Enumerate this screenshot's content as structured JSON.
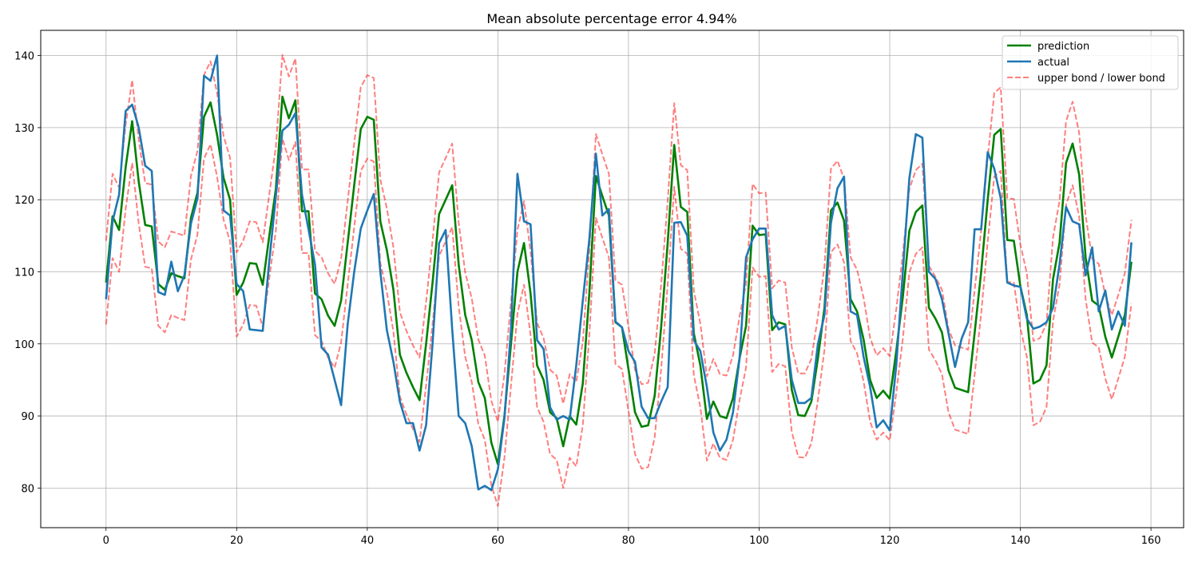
{
  "chart_data": {
    "type": "line",
    "title": "Mean absolute percentage error 4.94%",
    "xlabel": "",
    "ylabel": "",
    "xlim": [
      -10,
      165
    ],
    "ylim": [
      74.5,
      143.5
    ],
    "xticks": [
      0,
      20,
      40,
      60,
      80,
      100,
      120,
      140,
      160
    ],
    "yticks": [
      80,
      90,
      100,
      110,
      120,
      130,
      140
    ],
    "grid": true,
    "legend_position": "top-right",
    "series": [
      {
        "name": "prediction",
        "color": "#008000",
        "style": "solid",
        "x": [
          0,
          1,
          2,
          3,
          4,
          5,
          6,
          7,
          8,
          9,
          10,
          11,
          12,
          13,
          14,
          15,
          16,
          17,
          18,
          19,
          20,
          21,
          22,
          23,
          24,
          25,
          26,
          27,
          28,
          29,
          30,
          31,
          32,
          33,
          34,
          35,
          36,
          37,
          38,
          39,
          40,
          41,
          42,
          43,
          44,
          45,
          46,
          47,
          48,
          49,
          50,
          51,
          52,
          53,
          54,
          55,
          56,
          57,
          58,
          59,
          60,
          61,
          62,
          63,
          64,
          65,
          66,
          67,
          68,
          69,
          70,
          71,
          72,
          73,
          74,
          75,
          76,
          77,
          78,
          79,
          80,
          81,
          82,
          83,
          84,
          85,
          86,
          87,
          88,
          89,
          90,
          91,
          92,
          93,
          94,
          95,
          96,
          97,
          98,
          99,
          100,
          101,
          102,
          103,
          104,
          105,
          106,
          107,
          108,
          109,
          110,
          111,
          112,
          113,
          114,
          115,
          116,
          117,
          118,
          119,
          120,
          121,
          122,
          123,
          124,
          125,
          126,
          127,
          128,
          129,
          130,
          131,
          132,
          133,
          134,
          135,
          136,
          137,
          138,
          139,
          140,
          141,
          142,
          143,
          144,
          145,
          146,
          147,
          148,
          149,
          150,
          151,
          152,
          153,
          154,
          155,
          156,
          157
        ],
        "y": [
          108.5,
          117.7,
          115.8,
          124.5,
          130.9,
          122.5,
          116.5,
          116.3,
          108.3,
          107.5,
          109.8,
          109.4,
          109.1,
          117.5,
          121.0,
          131.5,
          133.5,
          129.0,
          123.0,
          120.0,
          106.8,
          108.5,
          111.2,
          111.1,
          108.2,
          115.0,
          121.5,
          134.3,
          131.3,
          133.8,
          118.4,
          118.4,
          107.0,
          106.2,
          103.9,
          102.5,
          106.0,
          114.0,
          122.0,
          129.8,
          131.5,
          131.1,
          117.0,
          113.0,
          107.5,
          98.5,
          96.0,
          94.0,
          92.2,
          100.0,
          108.5,
          118.0,
          120.0,
          122.0,
          111.0,
          104.0,
          100.5,
          94.7,
          92.5,
          86.3,
          83.3,
          90.0,
          100.0,
          110.0,
          114.0,
          107.0,
          97.0,
          95.0,
          90.5,
          89.7,
          85.8,
          90.0,
          88.8,
          94.5,
          107.0,
          123.3,
          120.5,
          117.8,
          103.0,
          102.3,
          96.5,
          90.5,
          88.5,
          88.7,
          92.8,
          102.3,
          114.0,
          127.6,
          119.0,
          118.3,
          101.5,
          97.0,
          89.6,
          92.0,
          90.0,
          89.7,
          92.5,
          98.0,
          102.5,
          116.4,
          115.1,
          115.2,
          101.9,
          103.0,
          102.7,
          93.6,
          90.1,
          90.0,
          92.0,
          98.0,
          105.0,
          118.5,
          119.6,
          117.1,
          106.2,
          104.5,
          100.6,
          95.0,
          92.5,
          93.5,
          92.4,
          99.0,
          106.5,
          115.7,
          118.3,
          119.2,
          105.0,
          103.5,
          101.6,
          96.3,
          93.9,
          93.6,
          93.3,
          101.5,
          110.0,
          120.0,
          129.0,
          129.8,
          114.4,
          114.3,
          108.0,
          104.0,
          94.5,
          95.0,
          97.0,
          109.0,
          114.0,
          125.1,
          127.8,
          123.5,
          112.0,
          106.0,
          105.3,
          101.0,
          98.1,
          101.0,
          104.0,
          111.4
        ]
      },
      {
        "name": "actual",
        "color": "#1f77b4",
        "style": "solid",
        "x": [
          0,
          1,
          2,
          3,
          4,
          5,
          6,
          7,
          8,
          9,
          10,
          11,
          12,
          13,
          14,
          15,
          16,
          17,
          18,
          19,
          20,
          21,
          22,
          23,
          24,
          25,
          26,
          27,
          28,
          29,
          30,
          31,
          32,
          33,
          34,
          35,
          36,
          37,
          38,
          39,
          40,
          41,
          42,
          43,
          44,
          45,
          46,
          47,
          48,
          49,
          50,
          51,
          52,
          53,
          54,
          55,
          56,
          57,
          58,
          59,
          60,
          61,
          62,
          63,
          64,
          65,
          66,
          67,
          68,
          69,
          70,
          71,
          72,
          73,
          74,
          75,
          76,
          77,
          78,
          79,
          80,
          81,
          82,
          83,
          84,
          85,
          86,
          87,
          88,
          89,
          90,
          91,
          92,
          93,
          94,
          95,
          96,
          97,
          98,
          99,
          100,
          101,
          102,
          103,
          104,
          105,
          106,
          107,
          108,
          109,
          110,
          111,
          112,
          113,
          114,
          115,
          116,
          117,
          118,
          119,
          120,
          121,
          122,
          123,
          124,
          125,
          126,
          127,
          128,
          129,
          130,
          131,
          132,
          133,
          134,
          135,
          136,
          137,
          138,
          139,
          140,
          141,
          142,
          143,
          144,
          145,
          146,
          147,
          148,
          149,
          150,
          151,
          152,
          153,
          154,
          155,
          156,
          157
        ],
        "y": [
          106.2,
          117.0,
          120.7,
          132.3,
          133.2,
          130.0,
          124.7,
          124.0,
          107.2,
          106.8,
          111.4,
          107.3,
          109.5,
          116.7,
          120.2,
          137.2,
          136.5,
          140.0,
          118.5,
          117.8,
          108.3,
          107.3,
          102.0,
          101.9,
          101.8,
          111.5,
          120.5,
          129.6,
          130.4,
          132.0,
          120.7,
          115.9,
          111.0,
          99.5,
          98.5,
          95.0,
          91.5,
          102.7,
          110.0,
          116.0,
          118.5,
          120.8,
          110.0,
          101.9,
          97.5,
          92.0,
          89.0,
          89.0,
          85.2,
          88.7,
          100.0,
          114.0,
          115.8,
          102.0,
          90.0,
          89.0,
          85.8,
          79.8,
          80.3,
          79.7,
          82.6,
          89.7,
          102.0,
          123.6,
          117.0,
          116.6,
          100.5,
          99.3,
          91.2,
          89.5,
          90.0,
          89.5,
          97.0,
          106.0,
          114.5,
          126.4,
          117.8,
          118.7,
          103.1,
          102.3,
          99.0,
          97.5,
          91.3,
          89.7,
          89.7,
          92.0,
          94.0,
          116.8,
          116.9,
          115.0,
          100.5,
          99.0,
          94.0,
          87.7,
          85.2,
          86.7,
          90.5,
          98.0,
          112.0,
          114.5,
          116.0,
          116.0,
          104.0,
          102.0,
          102.5,
          95.0,
          91.8,
          91.8,
          92.5,
          100.0,
          104.0,
          116.8,
          121.6,
          123.2,
          104.5,
          104.0,
          98.2,
          94.0,
          88.4,
          89.4,
          88.0,
          97.0,
          110.0,
          123.0,
          129.1,
          128.6,
          110.0,
          109.0,
          106.2,
          101.5,
          96.8,
          100.7,
          103.0,
          115.9,
          115.9,
          126.6,
          124.3,
          120.2,
          108.5,
          108.1,
          107.9,
          103.5,
          102.1,
          102.4,
          103.0,
          105.0,
          111.0,
          119.0,
          117.0,
          116.6,
          109.5,
          113.4,
          104.5,
          107.4,
          102.0,
          104.5,
          102.5,
          114.1
        ]
      },
      {
        "name": "upper bond / lower bond",
        "color": "#ff0000",
        "style": "dashed",
        "x": [
          0,
          1,
          2,
          3,
          4,
          5,
          6,
          7,
          8,
          9,
          10,
          11,
          12,
          13,
          14,
          15,
          16,
          17,
          18,
          19,
          20,
          21,
          22,
          23,
          24,
          25,
          26,
          27,
          28,
          29,
          30,
          31,
          32,
          33,
          34,
          35,
          36,
          37,
          38,
          39,
          40,
          41,
          42,
          43,
          44,
          45,
          46,
          47,
          48,
          49,
          50,
          51,
          52,
          53,
          54,
          55,
          56,
          57,
          58,
          59,
          60,
          61,
          62,
          63,
          64,
          65,
          66,
          67,
          68,
          69,
          70,
          71,
          72,
          73,
          74,
          75,
          76,
          77,
          78,
          79,
          80,
          81,
          82,
          83,
          84,
          85,
          86,
          87,
          88,
          89,
          90,
          91,
          92,
          93,
          94,
          95,
          96,
          97,
          98,
          99,
          100,
          101,
          102,
          103,
          104,
          105,
          106,
          107,
          108,
          109,
          110,
          111,
          112,
          113,
          114,
          115,
          116,
          117,
          118,
          119,
          120,
          121,
          122,
          123,
          124,
          125,
          126,
          127,
          128,
          129,
          130,
          131,
          132,
          133,
          134,
          135,
          136,
          137,
          138,
          139,
          140,
          141,
          142,
          143,
          144,
          145,
          146,
          147,
          148,
          149,
          150,
          151,
          152,
          153,
          154,
          155,
          156,
          157
        ],
        "upper": [
          114.3,
          123.6,
          121.7,
          130.4,
          136.6,
          128.3,
          122.3,
          122.1,
          114.2,
          113.4,
          115.6,
          115.3,
          115.0,
          123.3,
          126.8,
          137.3,
          139.2,
          134.8,
          128.8,
          125.8,
          112.7,
          114.3,
          117.0,
          116.9,
          114.1,
          120.8,
          127.3,
          140.1,
          137.1,
          139.6,
          124.2,
          124.2,
          112.9,
          112.0,
          109.8,
          108.3,
          111.8,
          119.8,
          127.8,
          135.6,
          137.3,
          136.9,
          122.8,
          118.8,
          113.4,
          104.4,
          101.8,
          99.8,
          98.1,
          105.8,
          114.3,
          123.8,
          125.8,
          127.8,
          116.8,
          109.9,
          106.3,
          100.6,
          98.4,
          92.1,
          89.2,
          95.8,
          105.8,
          115.8,
          119.8,
          112.8,
          102.9,
          100.8,
          96.4,
          95.6,
          91.7,
          95.8,
          94.7,
          100.3,
          112.8,
          129.1,
          126.3,
          123.6,
          108.8,
          108.2,
          102.4,
          96.4,
          94.4,
          94.6,
          98.6,
          108.2,
          119.8,
          133.4,
          124.8,
          124.1,
          107.4,
          102.8,
          95.5,
          97.9,
          95.8,
          95.6,
          98.4,
          103.8,
          108.3,
          122.2,
          120.9,
          121.0,
          107.7,
          108.8,
          108.5,
          99.5,
          95.9,
          95.9,
          97.9,
          103.8,
          110.8,
          124.3,
          125.4,
          122.9,
          112.0,
          110.3,
          106.4,
          100.8,
          98.4,
          99.4,
          98.3,
          104.8,
          112.4,
          121.5,
          124.1,
          125.0,
          110.8,
          109.3,
          107.5,
          102.1,
          99.8,
          99.5,
          99.2,
          107.4,
          115.8,
          125.8,
          134.8,
          135.6,
          120.2,
          120.1,
          113.8,
          109.8,
          100.4,
          100.8,
          102.8,
          114.8,
          119.8,
          130.9,
          133.6,
          129.3,
          117.8,
          111.8,
          111.1,
          106.8,
          104.0,
          106.8,
          109.8,
          117.2
        ],
        "lower": [
          102.7,
          111.9,
          110.0,
          118.7,
          125.1,
          116.7,
          110.7,
          110.5,
          102.5,
          101.6,
          104.0,
          103.6,
          103.3,
          111.7,
          115.2,
          125.7,
          127.7,
          123.2,
          117.2,
          114.2,
          101.0,
          102.7,
          105.4,
          105.3,
          102.4,
          109.2,
          115.7,
          128.5,
          125.5,
          128.0,
          112.6,
          112.6,
          101.2,
          100.4,
          98.1,
          96.7,
          100.2,
          108.2,
          116.2,
          124.0,
          125.7,
          125.3,
          111.2,
          107.2,
          101.7,
          92.7,
          90.2,
          88.2,
          86.4,
          94.2,
          102.7,
          112.2,
          114.2,
          116.2,
          105.2,
          98.2,
          94.7,
          88.9,
          86.7,
          80.4,
          77.5,
          84.2,
          94.2,
          104.2,
          108.2,
          101.2,
          91.2,
          89.2,
          84.7,
          83.9,
          80.0,
          84.2,
          83.0,
          88.7,
          101.2,
          117.5,
          114.7,
          112.0,
          97.2,
          96.5,
          90.7,
          84.7,
          82.7,
          82.9,
          87.0,
          96.5,
          108.2,
          121.8,
          113.2,
          112.5,
          95.7,
          91.2,
          83.8,
          86.2,
          84.2,
          83.9,
          86.7,
          92.2,
          96.7,
          110.6,
          109.3,
          109.4,
          96.1,
          97.2,
          96.9,
          87.8,
          84.3,
          84.2,
          86.2,
          92.2,
          99.2,
          112.7,
          113.8,
          111.3,
          100.4,
          98.7,
          94.8,
          89.2,
          86.7,
          87.7,
          86.6,
          93.2,
          100.7,
          109.9,
          112.5,
          113.4,
          99.2,
          97.7,
          95.8,
          90.5,
          88.1,
          87.8,
          87.5,
          95.7,
          104.2,
          114.2,
          123.2,
          124.0,
          108.6,
          108.5,
          102.2,
          98.2,
          88.7,
          89.2,
          91.2,
          103.2,
          108.2,
          119.3,
          122.0,
          117.7,
          106.2,
          100.2,
          99.5,
          95.2,
          92.3,
          95.2,
          98.2,
          105.6
        ]
      }
    ]
  }
}
